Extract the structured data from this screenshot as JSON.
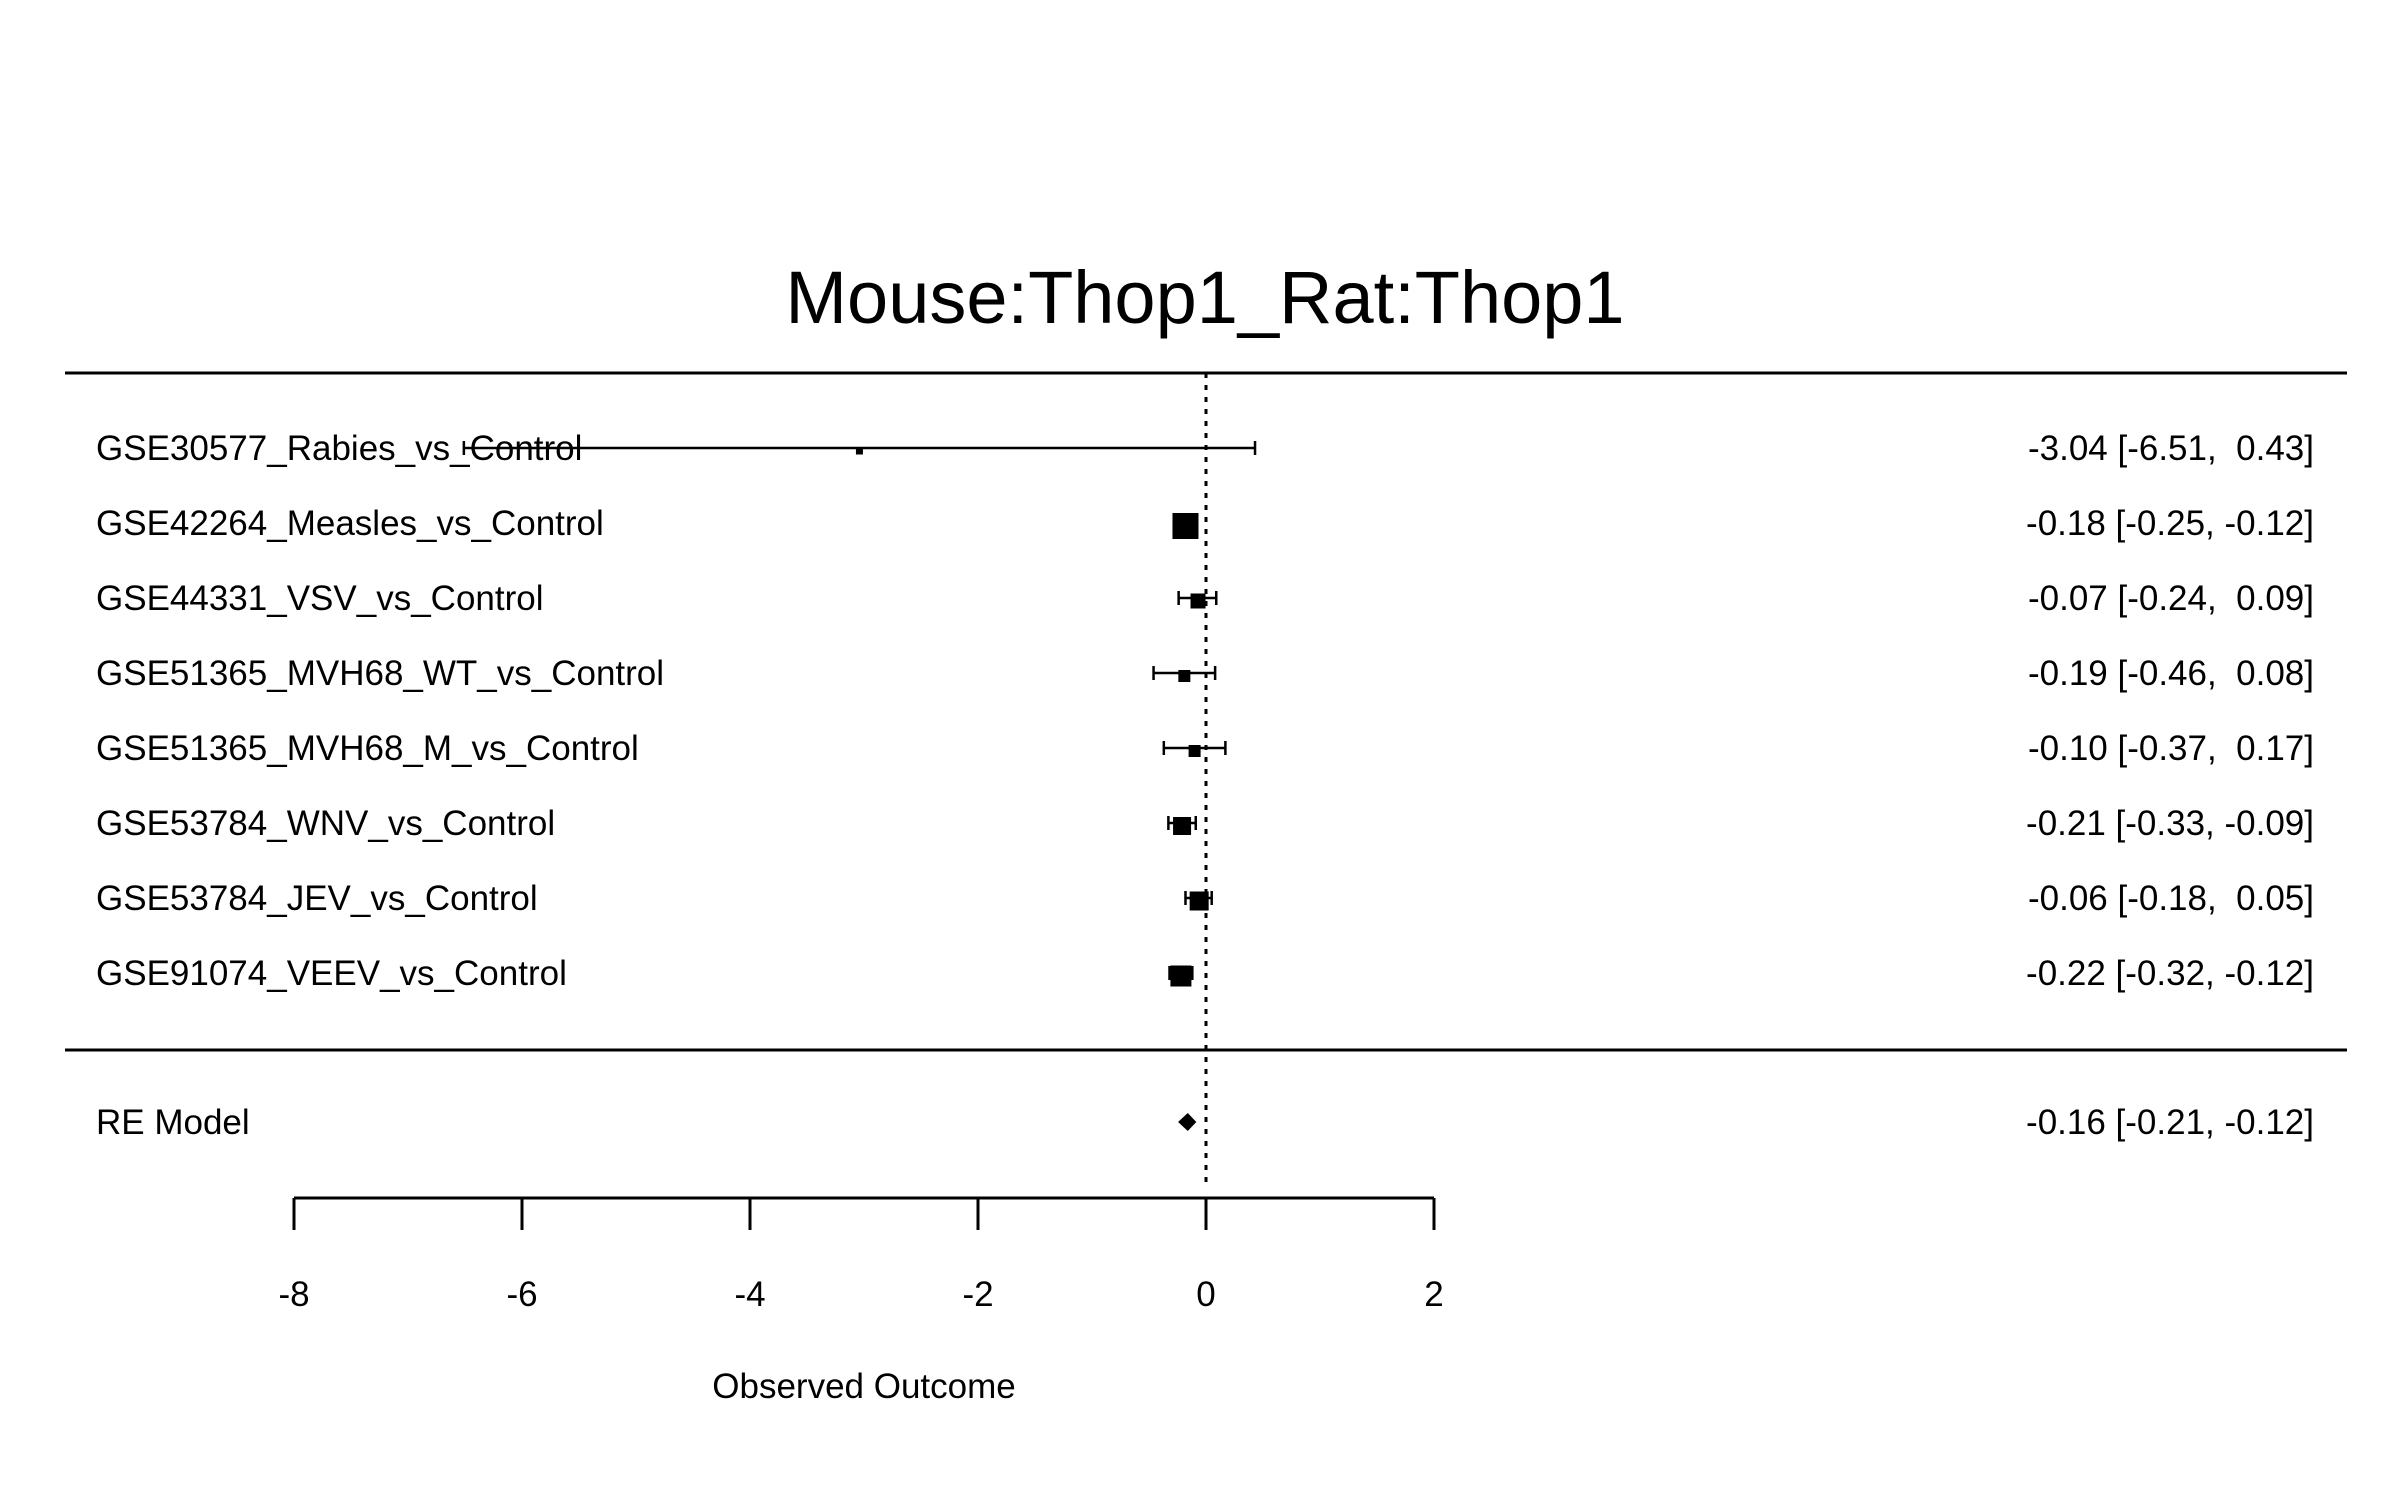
{
  "chart_data": {
    "type": "forest",
    "title": "Mouse:Thop1_Rat:Thop1",
    "xlabel": "Observed Outcome",
    "xlim": [
      -8,
      2
    ],
    "xticks": [
      -8,
      -6,
      -4,
      -2,
      0,
      2
    ],
    "reference_line": 0,
    "grid": false,
    "studies": [
      {
        "label": "GSE30577_Rabies_vs_Control",
        "estimate": -3.04,
        "lower": -6.51,
        "upper": 0.43,
        "ci_text": "-3.04 [-6.51,  0.43]",
        "weight": 0.05
      },
      {
        "label": "GSE42264_Measles_vs_Control",
        "estimate": -0.18,
        "lower": -0.25,
        "upper": -0.12,
        "ci_text": "-0.18 [-0.25, -0.12]",
        "weight": 1.0
      },
      {
        "label": "GSE44331_VSV_vs_Control",
        "estimate": -0.07,
        "lower": -0.24,
        "upper": 0.09,
        "ci_text": "-0.07 [-0.24,  0.09]",
        "weight": 0.45
      },
      {
        "label": "GSE51365_MVH68_WT_vs_Control",
        "estimate": -0.19,
        "lower": -0.46,
        "upper": 0.08,
        "ci_text": "-0.19 [-0.46,  0.08]",
        "weight": 0.3
      },
      {
        "label": "GSE51365_MVH68_M_vs_Control",
        "estimate": -0.1,
        "lower": -0.37,
        "upper": 0.17,
        "ci_text": "-0.10 [-0.37,  0.17]",
        "weight": 0.3
      },
      {
        "label": "GSE53784_WNV_vs_Control",
        "estimate": -0.21,
        "lower": -0.33,
        "upper": -0.09,
        "ci_text": "-0.21 [-0.33, -0.09]",
        "weight": 0.6
      },
      {
        "label": "GSE53784_JEV_vs_Control",
        "estimate": -0.06,
        "lower": -0.18,
        "upper": 0.05,
        "ci_text": "-0.06 [-0.18,  0.05]",
        "weight": 0.65
      },
      {
        "label": "GSE91074_VEEV_vs_Control",
        "estimate": -0.22,
        "lower": -0.32,
        "upper": -0.12,
        "ci_text": "-0.22 [-0.32, -0.12]",
        "weight": 0.75
      }
    ],
    "summary": {
      "label": "RE Model",
      "estimate": -0.16,
      "lower": -0.21,
      "upper": -0.12,
      "ci_text": "-0.16 [-0.21, -0.12]"
    }
  }
}
